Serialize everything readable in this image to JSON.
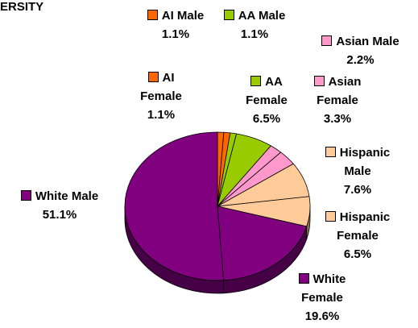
{
  "chart_data": {
    "type": "pie",
    "title": "ERSITY",
    "categories": [
      "AI Male",
      "AI Female",
      "AA Male",
      "AA Female",
      "Asian Male",
      "Asian Female",
      "Hispanic Male",
      "Hispanic Female",
      "White Female",
      "White Male"
    ],
    "values": [
      1.1,
      1.1,
      1.1,
      6.5,
      2.2,
      3.3,
      7.6,
      6.5,
      19.6,
      51.1
    ],
    "value_labels": [
      "1.1%",
      "1.1%",
      "1.1%",
      "6.5%",
      "2.2%",
      "3.3%",
      "7.6%",
      "6.5%",
      "19.6%",
      "51.1%"
    ],
    "colors": [
      "#ff6600",
      "#ff6600",
      "#99cc00",
      "#99cc00",
      "#ff99cc",
      "#ff99cc",
      "#ffcc99",
      "#ffcc99",
      "#800080",
      "#800080"
    ]
  }
}
